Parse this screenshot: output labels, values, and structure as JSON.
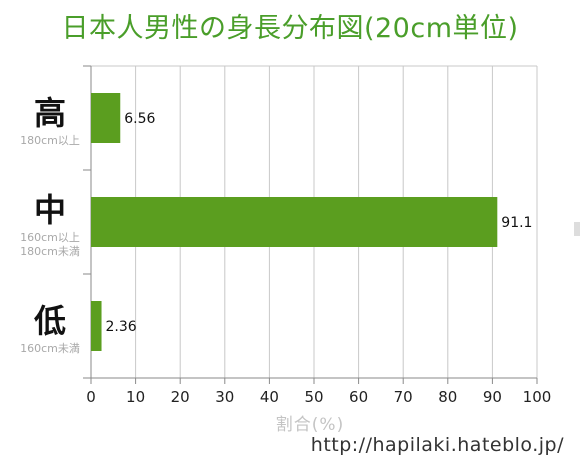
{
  "title": "日本人男性の身長分布図(20cm単位)",
  "watermark": "http://hapilaki.hateblo.jp/",
  "colors": {
    "bar": "#5b9e1f",
    "title": "#4a9e2a",
    "grid": "#c8c8c8",
    "axis_title": "#c4c4c4",
    "sublabel": "#a8a8a8"
  },
  "chart_data": {
    "type": "bar",
    "orientation": "horizontal",
    "title": "日本人男性の身長分布図(20cm単位)",
    "xlabel": "割合(%)",
    "ylabel": "",
    "xlim": [
      0,
      100
    ],
    "xticks": [
      0,
      10,
      20,
      30,
      40,
      50,
      60,
      70,
      80,
      90,
      100
    ],
    "grid": true,
    "categories": [
      {
        "label": "高",
        "sublabel": [
          "180cm以上"
        ],
        "value": 6.56,
        "value_label": "6.56"
      },
      {
        "label": "中",
        "sublabel": [
          "160cm以上",
          "180cm未満"
        ],
        "value": 91.1,
        "value_label": "91.1"
      },
      {
        "label": "低",
        "sublabel": [
          "160cm未満"
        ],
        "value": 2.36,
        "value_label": "2.36"
      }
    ]
  }
}
